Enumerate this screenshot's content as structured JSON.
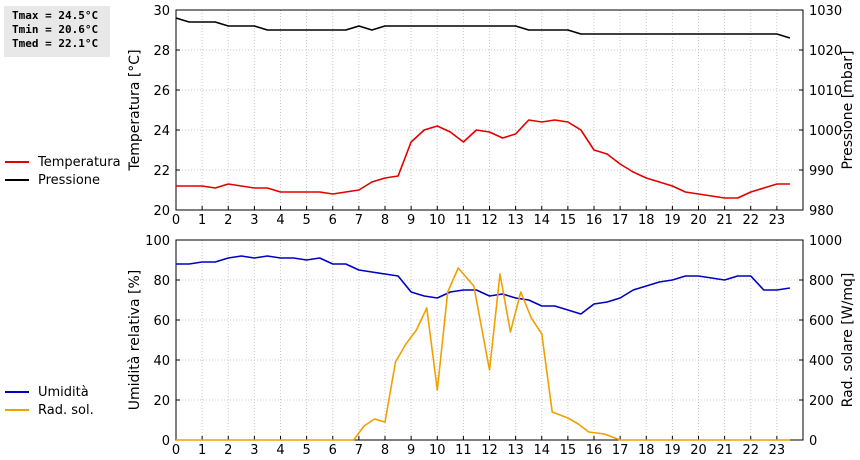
{
  "stats": {
    "tmax": "Tmax = 24.5°C",
    "tmin": "Tmin = 20.6°C",
    "tmed": "Tmed = 22.1°C"
  },
  "chart_data": [
    {
      "type": "line",
      "ylabel": "Temperatura [°C]",
      "y2label": "Pressione [mbar]",
      "xlim": [
        0,
        24
      ],
      "xticks": [
        0,
        1,
        2,
        3,
        4,
        5,
        6,
        7,
        8,
        9,
        10,
        11,
        12,
        13,
        14,
        15,
        16,
        17,
        18,
        19,
        20,
        21,
        22,
        23
      ],
      "ylim": [
        20,
        30
      ],
      "yticks": [
        20,
        22,
        24,
        26,
        28,
        30
      ],
      "y2lim": [
        980,
        1030
      ],
      "y2ticks": [
        980,
        990,
        1000,
        1010,
        1020,
        1030
      ],
      "grid": true,
      "legend_position": "left",
      "series": [
        {
          "name": "Temperatura",
          "axis": "left",
          "color": "#e00000",
          "x": [
            0,
            0.5,
            1,
            1.5,
            2,
            2.5,
            3,
            3.5,
            4,
            4.5,
            5,
            5.5,
            6,
            6.5,
            7,
            7.5,
            8,
            8.5,
            9,
            9.5,
            10,
            10.5,
            11,
            11.5,
            12,
            12.5,
            13,
            13.5,
            14,
            14.5,
            15,
            15.5,
            16,
            16.5,
            17,
            17.5,
            18,
            18.5,
            19,
            19.5,
            20,
            20.5,
            21,
            21.5,
            22,
            22.5,
            23,
            23.5
          ],
          "values": [
            21.2,
            21.2,
            21.2,
            21.1,
            21.3,
            21.2,
            21.1,
            21.1,
            20.9,
            20.9,
            20.9,
            20.9,
            20.8,
            20.9,
            21.0,
            21.4,
            21.6,
            21.7,
            23.4,
            24.0,
            24.2,
            23.9,
            23.4,
            24.0,
            23.9,
            23.6,
            23.8,
            24.5,
            24.4,
            24.5,
            24.4,
            24.0,
            23.0,
            22.8,
            22.3,
            21.9,
            21.6,
            21.4,
            21.2,
            20.9,
            20.8,
            20.7,
            20.6,
            20.6,
            20.9,
            21.1,
            21.3,
            21.3
          ]
        },
        {
          "name": "Pressione",
          "axis": "right",
          "color": "#000000",
          "x": [
            0,
            0.5,
            1,
            1.5,
            2,
            2.5,
            3,
            3.5,
            4,
            4.5,
            5,
            5.5,
            6,
            6.5,
            7,
            7.5,
            8,
            8.5,
            9,
            9.5,
            10,
            10.5,
            11,
            11.5,
            12,
            12.5,
            13,
            13.5,
            14,
            14.5,
            15,
            15.5,
            16,
            16.5,
            17,
            17.5,
            18,
            18.5,
            19,
            19.5,
            20,
            20.5,
            21,
            21.5,
            22,
            22.5,
            23,
            23.5
          ],
          "values": [
            1028,
            1027,
            1027,
            1027,
            1026,
            1026,
            1026,
            1025,
            1025,
            1025,
            1025,
            1025,
            1025,
            1025,
            1026,
            1025,
            1026,
            1026,
            1026,
            1026,
            1026,
            1026,
            1026,
            1026,
            1026,
            1026,
            1026,
            1025,
            1025,
            1025,
            1025,
            1024,
            1024,
            1024,
            1024,
            1024,
            1024,
            1024,
            1024,
            1024,
            1024,
            1024,
            1024,
            1024,
            1024,
            1024,
            1024,
            1023
          ]
        }
      ]
    },
    {
      "type": "line",
      "ylabel": "Umidità relativa [%]",
      "y2label": "Rad. solare [W/mq]",
      "xlim": [
        0,
        24
      ],
      "xticks": [
        0,
        1,
        2,
        3,
        4,
        5,
        6,
        7,
        8,
        9,
        10,
        11,
        12,
        13,
        14,
        15,
        16,
        17,
        18,
        19,
        20,
        21,
        22,
        23
      ],
      "ylim": [
        0,
        100
      ],
      "yticks": [
        0,
        20,
        40,
        60,
        80,
        100
      ],
      "y2lim": [
        0,
        1000
      ],
      "y2ticks": [
        0,
        200,
        400,
        600,
        800,
        1000
      ],
      "grid": true,
      "legend_position": "left",
      "series": [
        {
          "name": "Umidità",
          "axis": "left",
          "color": "#0000c0",
          "x": [
            0,
            0.5,
            1,
            1.5,
            2,
            2.5,
            3,
            3.5,
            4,
            4.5,
            5,
            5.5,
            6,
            6.5,
            7,
            7.5,
            8,
            8.5,
            9,
            9.5,
            10,
            10.5,
            11,
            11.5,
            12,
            12.5,
            13,
            13.5,
            14,
            14.5,
            15,
            15.5,
            16,
            16.5,
            17,
            17.5,
            18,
            18.5,
            19,
            19.5,
            20,
            20.5,
            21,
            21.5,
            22,
            22.5,
            23,
            23.5
          ],
          "values": [
            88,
            88,
            89,
            89,
            91,
            92,
            91,
            92,
            91,
            91,
            90,
            91,
            88,
            88,
            85,
            84,
            83,
            82,
            74,
            72,
            71,
            74,
            75,
            75,
            72,
            73,
            71,
            70,
            67,
            67,
            65,
            63,
            68,
            69,
            71,
            75,
            77,
            79,
            80,
            82,
            82,
            81,
            80,
            82,
            82,
            75,
            75,
            76
          ]
        },
        {
          "name": "Rad. sol.",
          "axis": "right",
          "color": "#f0a000",
          "x": [
            0,
            0.5,
            1,
            1.5,
            2,
            2.5,
            3,
            3.5,
            4,
            4.5,
            5,
            5.5,
            6,
            6.5,
            6.8,
            7.2,
            7.6,
            8,
            8.4,
            8.8,
            9.2,
            9.6,
            10,
            10.4,
            10.8,
            11.4,
            12,
            12.4,
            12.8,
            13.2,
            13.6,
            14,
            14.4,
            15,
            15.4,
            15.8,
            16.4,
            17,
            17.4,
            17.8,
            18,
            19,
            20,
            21,
            22,
            23,
            23.5
          ],
          "values": [
            0,
            0,
            0,
            0,
            0,
            0,
            0,
            0,
            0,
            0,
            0,
            0,
            0,
            0,
            0,
            70,
            105,
            90,
            390,
            480,
            550,
            660,
            250,
            740,
            860,
            770,
            350,
            830,
            540,
            740,
            610,
            530,
            140,
            110,
            80,
            40,
            30,
            0,
            0,
            0,
            0,
            0,
            0,
            0,
            0,
            0,
            0
          ]
        }
      ]
    }
  ]
}
